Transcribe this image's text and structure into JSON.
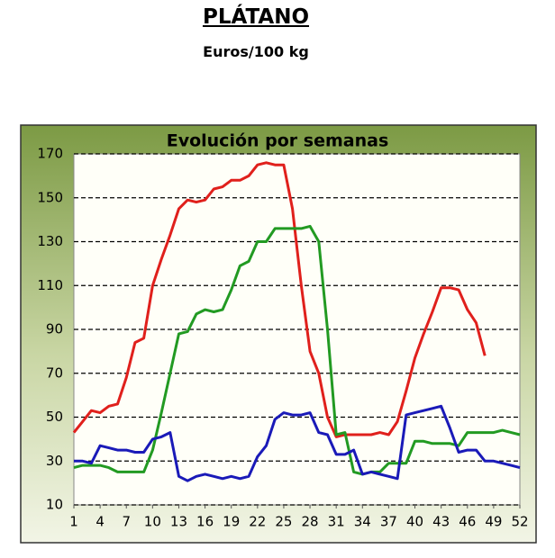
{
  "title": "PLÁTANO",
  "subtitle": "Euros/100 kg",
  "chart_data": {
    "type": "line",
    "title": "Evolución por semanas",
    "x": [
      1,
      2,
      3,
      4,
      5,
      6,
      7,
      8,
      9,
      10,
      11,
      12,
      13,
      14,
      15,
      16,
      17,
      18,
      19,
      20,
      21,
      22,
      23,
      24,
      25,
      26,
      27,
      28,
      29,
      30,
      31,
      32,
      33,
      34,
      35,
      36,
      37,
      38,
      39,
      40,
      41,
      42,
      43,
      44,
      45,
      46,
      47,
      48,
      49,
      50,
      51,
      52
    ],
    "xlim": [
      1,
      52
    ],
    "xticks": [
      1,
      4,
      7,
      10,
      13,
      16,
      19,
      22,
      25,
      28,
      31,
      34,
      37,
      40,
      43,
      46,
      49,
      52
    ],
    "ylim": [
      10,
      170
    ],
    "yticks": [
      10,
      30,
      50,
      70,
      90,
      110,
      130,
      150,
      170
    ],
    "grid": true,
    "series": [
      {
        "color": "#e0201c",
        "values": [
          43,
          48,
          53,
          52,
          55,
          56,
          68,
          84,
          86,
          110,
          122,
          133,
          145,
          149,
          148,
          149,
          154,
          155,
          158,
          158,
          160,
          165,
          166,
          165,
          165,
          145,
          110,
          80,
          70,
          50,
          41,
          42,
          42,
          42,
          42,
          43,
          42,
          48,
          62,
          77,
          88,
          98,
          109,
          109,
          108,
          99,
          93,
          78,
          null,
          null,
          null,
          null
        ]
      },
      {
        "color": "#229a22",
        "values": [
          27,
          28,
          28,
          28,
          27,
          25,
          25,
          25,
          25,
          35,
          52,
          70,
          88,
          89,
          97,
          99,
          98,
          99,
          108,
          119,
          121,
          130,
          130,
          136,
          136,
          136,
          136,
          137,
          130,
          90,
          42,
          43,
          25,
          24,
          25,
          25,
          29,
          29,
          29,
          39,
          39,
          38,
          38,
          38,
          37,
          43,
          43,
          43,
          43,
          44,
          43,
          42
        ]
      },
      {
        "color": "#1a1ab8",
        "values": [
          30,
          30,
          29,
          37,
          36,
          35,
          35,
          34,
          34,
          40,
          41,
          43,
          23,
          21,
          23,
          24,
          23,
          22,
          23,
          22,
          23,
          32,
          37,
          49,
          52,
          51,
          51,
          52,
          43,
          42,
          33,
          33,
          35,
          24,
          25,
          24,
          23,
          22,
          51,
          52,
          53,
          54,
          55,
          45,
          34,
          35,
          35,
          30,
          30,
          29,
          28,
          27
        ]
      }
    ]
  }
}
